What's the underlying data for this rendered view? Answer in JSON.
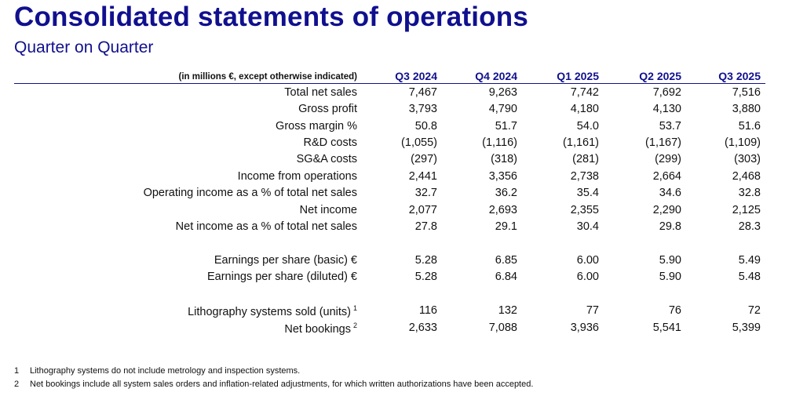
{
  "title": "Consolidated statements of operations",
  "subtitle": "Quarter on Quarter",
  "table": {
    "unit_note": "(in millions €, except otherwise indicated)",
    "columns": [
      "Q3 2024",
      "Q4 2024",
      "Q1 2025",
      "Q2 2025",
      "Q3 2025"
    ],
    "rows": [
      {
        "label": "Total net sales",
        "values": [
          "7,467",
          "9,263",
          "7,742",
          "7,692",
          "7,516"
        ]
      },
      {
        "label": "Gross profit",
        "values": [
          "3,793",
          "4,790",
          "4,180",
          "4,130",
          "3,880"
        ]
      },
      {
        "label": "Gross margin %",
        "values": [
          "50.8",
          "51.7",
          "54.0",
          "53.7",
          "51.6"
        ]
      },
      {
        "label": "R&D costs",
        "values": [
          "(1,055)",
          "(1,116)",
          "(1,161)",
          "(1,167)",
          "(1,109)"
        ]
      },
      {
        "label": "SG&A costs",
        "values": [
          "(297)",
          "(318)",
          "(281)",
          "(299)",
          "(303)"
        ]
      },
      {
        "label": "Income from operations",
        "values": [
          "2,441",
          "3,356",
          "2,738",
          "2,664",
          "2,468"
        ]
      },
      {
        "label": "Operating income as a % of total net sales",
        "values": [
          "32.7",
          "36.2",
          "35.4",
          "34.6",
          "32.8"
        ]
      },
      {
        "label": "Net income",
        "values": [
          "2,077",
          "2,693",
          "2,355",
          "2,290",
          "2,125"
        ]
      },
      {
        "label": "Net income as a % of total net sales",
        "values": [
          "27.8",
          "29.1",
          "30.4",
          "29.8",
          "28.3"
        ]
      },
      {
        "label": "Earnings per share (basic) €",
        "values": [
          "5.28",
          "6.85",
          "6.00",
          "5.90",
          "5.49"
        ]
      },
      {
        "label": "Earnings per share (diluted) €",
        "values": [
          "5.28",
          "6.84",
          "6.00",
          "5.90",
          "5.48"
        ]
      },
      {
        "label": "Lithography systems sold (units)",
        "sup": "1",
        "values": [
          "116",
          "132",
          "77",
          "76",
          "72"
        ]
      },
      {
        "label": "Net bookings",
        "sup": "2",
        "values": [
          "2,633",
          "7,088",
          "3,936",
          "5,541",
          "5,399"
        ]
      }
    ]
  },
  "footnotes": [
    {
      "num": "1",
      "text": "Lithography systems do not include metrology and inspection systems."
    },
    {
      "num": "2",
      "text": "Net bookings include all system sales orders and inflation-related adjustments, for which written authorizations have been accepted."
    }
  ]
}
